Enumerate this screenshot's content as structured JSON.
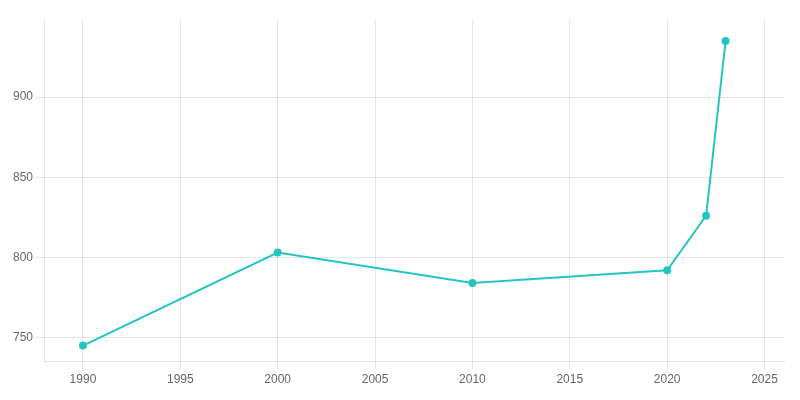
{
  "chart_data": {
    "type": "line",
    "x": [
      1990,
      2000,
      2010,
      2020,
      2022,
      2023
    ],
    "values": [
      745,
      803,
      784,
      792,
      826,
      935
    ],
    "color": "#25C4C4",
    "marker": "circle",
    "xlim": [
      1988,
      2026
    ],
    "xticks": [
      1990,
      1995,
      2000,
      2005,
      2010,
      2015,
      2020,
      2025
    ],
    "ylim": [
      735,
      948
    ],
    "yticks": [
      750,
      800,
      850,
      900
    ],
    "grid": true
  }
}
